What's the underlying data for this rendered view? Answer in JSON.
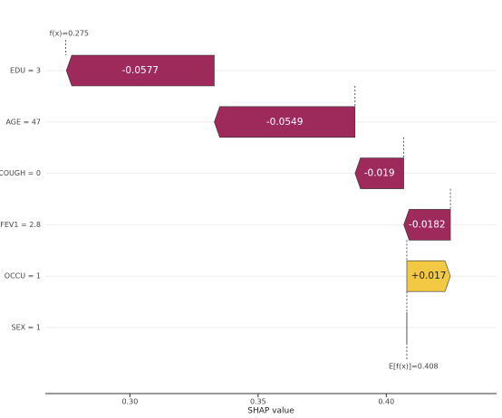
{
  "chart_data": {
    "type": "waterfall",
    "categories": [
      "EDU = 3",
      "AGE = 47",
      "COUGH = 0",
      "FEV1 = 2.8",
      "OCCU = 1",
      "SEX = 1"
    ],
    "values": [
      -0.0577,
      -0.0549,
      -0.019,
      -0.0182,
      0.017,
      0
    ],
    "value_labels": [
      "-0.0577",
      "-0.0549",
      "-0.019",
      "-0.0182",
      "+0.017",
      null
    ],
    "colors": {
      "negative": "#9e2a5c",
      "positive": "#f3c842"
    },
    "x_label": "SHAP value",
    "xlim": [
      0.267,
      0.443
    ],
    "xticks": [
      {
        "value": 0.3,
        "label": "0.30"
      },
      0.35,
      {
        "value": 0.4,
        "label": "0.40"
      }
    ],
    "annotations": {
      "prediction": {
        "text": "f(x)=0.275",
        "value": 0.275
      },
      "base": {
        "text": "E[f(x)]=0.408",
        "value": 0.408
      }
    },
    "grid": true
  }
}
